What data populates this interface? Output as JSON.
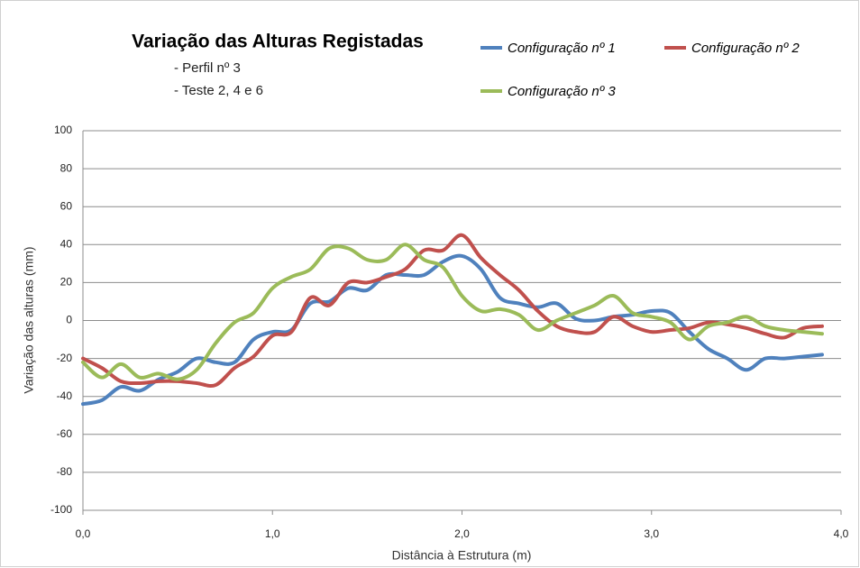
{
  "chart_data": {
    "type": "line",
    "title": "Variação das Alturas Registadas",
    "subtitle": [
      "- Perfil nº 3",
      "- Teste 2, 4 e 6"
    ],
    "x_label": "Distância à Estrutura (m)",
    "y_label": "Variação das alturas (mm)",
    "x": [
      0,
      0.1,
      0.2,
      0.3,
      0.4,
      0.5,
      0.6,
      0.7,
      0.8,
      0.9,
      1.0,
      1.1,
      1.2,
      1.3,
      1.4,
      1.5,
      1.6,
      1.7,
      1.8,
      1.9,
      2.0,
      2.1,
      2.2,
      2.3,
      2.4,
      2.5,
      2.6,
      2.7,
      2.8,
      2.9,
      3.0,
      3.1,
      3.2,
      3.3,
      3.4,
      3.5,
      3.6,
      3.7,
      3.8,
      3.9
    ],
    "series": [
      {
        "name": "Configuração nº 1",
        "color": "#4f81bd",
        "values": [
          -44,
          -42,
          -35,
          -37,
          -31,
          -27,
          -20,
          -22,
          -22,
          -10,
          -6,
          -5,
          9,
          10,
          17,
          16,
          24,
          24,
          24,
          31,
          34,
          27,
          12,
          9,
          7,
          9,
          1,
          0,
          2,
          3,
          5,
          4,
          -6,
          -15,
          -20,
          -26,
          -20,
          -20,
          -19,
          -18
        ]
      },
      {
        "name": "Configuração nº 2",
        "color": "#c0504d",
        "values": [
          -20,
          -25,
          -32,
          -33,
          -32,
          -32,
          -33,
          -34,
          -25,
          -19,
          -8,
          -6,
          12,
          8,
          20,
          20,
          23,
          27,
          37,
          37,
          45,
          33,
          24,
          16,
          5,
          -3,
          -6,
          -6,
          2,
          -3,
          -6,
          -5,
          -4,
          -1,
          -2,
          -4,
          -7,
          -9,
          -4,
          -3
        ]
      },
      {
        "name": "Configuração nº 3",
        "color": "#9bbb59",
        "values": [
          -22,
          -30,
          -23,
          -30,
          -28,
          -31,
          -26,
          -12,
          -1,
          4,
          17,
          23,
          27,
          38,
          38,
          32,
          32,
          40,
          32,
          28,
          13,
          5,
          6,
          3,
          -5,
          0,
          4,
          8,
          13,
          4,
          2,
          -1,
          -10,
          -3,
          -1,
          2,
          -3,
          -5,
          -6,
          -7
        ]
      }
    ],
    "xlim": [
      0,
      4
    ],
    "xticks": [
      {
        "value": 0,
        "label": "0,0"
      },
      {
        "value": 1,
        "label": "1,0"
      },
      {
        "value": 2,
        "label": "2,0"
      },
      {
        "value": 3,
        "label": "3,0"
      },
      {
        "value": 4,
        "label": "4,0"
      }
    ],
    "ylim": [
      -100,
      100
    ],
    "yticks": [
      -100,
      -80,
      -60,
      -40,
      -20,
      0,
      20,
      40,
      60,
      80,
      100
    ],
    "grid": true,
    "legend": "top-right"
  }
}
